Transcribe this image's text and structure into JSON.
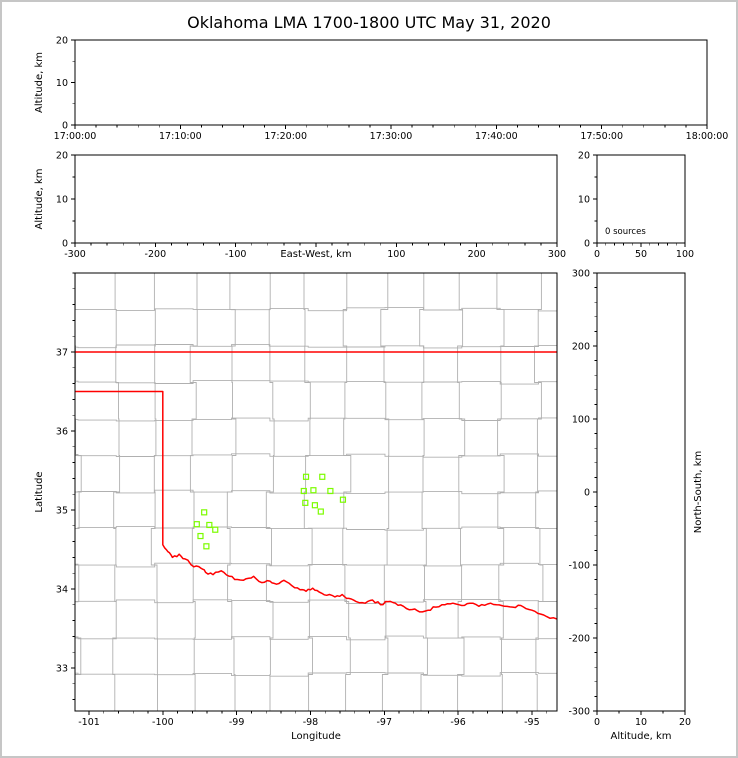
{
  "chart_data": {
    "type": "scatter",
    "title": "Oklahoma LMA 1700-1800 UTC May 31, 2020",
    "source_count": 0,
    "panels": {
      "time_height_panel": {
        "ylabel": "Altitude, km",
        "xlim": [
          0,
          60
        ],
        "ylim": [
          0,
          20
        ],
        "xtick_values": [
          0,
          10,
          20,
          30,
          40,
          50,
          60
        ],
        "xtick_labels": [
          "17:00:00",
          "17:10:00",
          "17:20:00",
          "17:30:00",
          "17:40:00",
          "17:50:00",
          "18:00:00"
        ],
        "xtick_minor_step": 2,
        "ytick_values": [
          0,
          10,
          20
        ],
        "ytick_labels": [
          "0",
          "10",
          "20"
        ],
        "ytick_minor_step": 5,
        "points": []
      },
      "ew_height_panel": {
        "xlabel": "East-West, km",
        "ylabel": "Altitude, km",
        "xlim": [
          -300,
          300
        ],
        "ylim": [
          0,
          20
        ],
        "xtick_values": [
          -300,
          -200,
          -100,
          0,
          100,
          200,
          300
        ],
        "xtick_labels": [
          "-300",
          "-200",
          "-100",
          "",
          "100",
          "200",
          "300"
        ],
        "xtick_minor_step": 20,
        "ytick_values": [
          0,
          10,
          20
        ],
        "ytick_labels": [
          "0",
          "10",
          "20"
        ],
        "ytick_minor_step": 5,
        "points": []
      },
      "source_count_panel": {
        "xlim": [
          0,
          100
        ],
        "ylim": [
          0,
          20
        ],
        "xtick_values": [
          0,
          50,
          100
        ],
        "xtick_labels": [
          "0",
          "50",
          "100"
        ],
        "xtick_minor_step": 10,
        "ytick_values": [
          0,
          10,
          20
        ],
        "ytick_labels": [
          "0",
          "10",
          "20"
        ],
        "ytick_minor_step": 5,
        "annotation": "0 sources",
        "bars": []
      },
      "map_panel": {
        "xlabel": "Longitude",
        "ylabel": "Latitude",
        "xlim": [
          -101.19,
          -94.66
        ],
        "ylim": [
          32.455,
          38.0
        ],
        "xtick_values": [
          -101,
          -100,
          -99,
          -98,
          -97,
          -96,
          -95
        ],
        "xtick_labels": [
          "-101",
          "-100",
          "-99",
          "-98",
          "-97",
          "-96",
          "-95"
        ],
        "xtick_minor_step": 0.2,
        "ytick_values": [
          33,
          34,
          35,
          36,
          37
        ],
        "ytick_labels": [
          "33",
          "34",
          "35",
          "36",
          "37"
        ],
        "ytick_minor_step": 0.2,
        "stations_lon_lat": [
          [
            -98.06,
            35.42
          ],
          [
            -97.84,
            35.42
          ],
          [
            -98.09,
            35.24
          ],
          [
            -97.96,
            35.25
          ],
          [
            -97.73,
            35.24
          ],
          [
            -98.07,
            35.09
          ],
          [
            -97.94,
            35.06
          ],
          [
            -97.86,
            34.98
          ],
          [
            -97.56,
            35.13
          ],
          [
            -99.44,
            34.97
          ],
          [
            -99.54,
            34.82
          ],
          [
            -99.37,
            34.81
          ],
          [
            -99.29,
            34.75
          ],
          [
            -99.49,
            34.67
          ],
          [
            -99.41,
            34.54
          ]
        ],
        "state_border": {
          "north_border_lat": 37.0,
          "panhandle_south_lat": 36.5,
          "panhandle_east_meridian_lon": -100.0,
          "meridian_south_end_lat": 34.56,
          "red_river_lon_lat": [
            [
              -100.0,
              34.56
            ],
            [
              -99.93,
              34.47
            ],
            [
              -99.87,
              34.4
            ],
            [
              -99.78,
              34.44
            ],
            [
              -99.7,
              34.38
            ],
            [
              -99.58,
              34.28
            ],
            [
              -99.48,
              34.26
            ],
            [
              -99.42,
              34.21
            ],
            [
              -99.32,
              34.18
            ],
            [
              -99.21,
              34.23
            ],
            [
              -99.1,
              34.16
            ],
            [
              -98.99,
              34.12
            ],
            [
              -98.87,
              34.13
            ],
            [
              -98.77,
              34.16
            ],
            [
              -98.66,
              34.08
            ],
            [
              -98.55,
              34.1
            ],
            [
              -98.46,
              34.06
            ],
            [
              -98.36,
              34.11
            ],
            [
              -98.25,
              34.04
            ],
            [
              -98.14,
              33.99
            ],
            [
              -98.06,
              33.97
            ],
            [
              -97.97,
              34.01
            ],
            [
              -97.88,
              33.96
            ],
            [
              -97.78,
              33.92
            ],
            [
              -97.67,
              33.9
            ],
            [
              -97.57,
              33.93
            ],
            [
              -97.48,
              33.88
            ],
            [
              -97.38,
              33.84
            ],
            [
              -97.26,
              33.82
            ],
            [
              -97.16,
              33.86
            ],
            [
              -97.05,
              33.8
            ],
            [
              -96.95,
              33.84
            ],
            [
              -96.85,
              33.82
            ],
            [
              -96.74,
              33.78
            ],
            [
              -96.62,
              33.74
            ],
            [
              -96.52,
              33.71
            ],
            [
              -96.41,
              33.73
            ],
            [
              -96.3,
              33.77
            ],
            [
              -96.18,
              33.8
            ],
            [
              -96.07,
              33.82
            ],
            [
              -95.95,
              33.79
            ],
            [
              -95.84,
              33.82
            ],
            [
              -95.72,
              33.78
            ],
            [
              -95.6,
              33.81
            ],
            [
              -95.48,
              33.8
            ],
            [
              -95.37,
              33.78
            ],
            [
              -95.26,
              33.77
            ],
            [
              -95.15,
              33.79
            ],
            [
              -95.04,
              33.74
            ],
            [
              -94.92,
              33.69
            ],
            [
              -94.8,
              33.65
            ],
            [
              -94.66,
              33.62
            ]
          ]
        }
      },
      "ns_height_panel": {
        "xlabel": "Altitude, km",
        "ylabel": "North-South, km",
        "xlim": [
          0,
          20
        ],
        "ylim": [
          -300,
          300
        ],
        "xtick_values": [
          0,
          10,
          20
        ],
        "xtick_labels": [
          "0",
          "10",
          "20"
        ],
        "xtick_minor_step": 5,
        "ytick_values": [
          -300,
          -200,
          -100,
          0,
          100,
          200,
          300
        ],
        "ytick_labels": [
          "-300",
          "-200",
          "-100",
          "0",
          "100",
          "200",
          "300"
        ],
        "ytick_minor_step": 20,
        "points": []
      }
    },
    "colors": {
      "state_border": "#ff0000",
      "county_lines": "#b0b0b0",
      "stations": "#7CFC00",
      "axes": "#000000",
      "background": "#ffffff",
      "figure_border": "#c6c6c6"
    }
  }
}
